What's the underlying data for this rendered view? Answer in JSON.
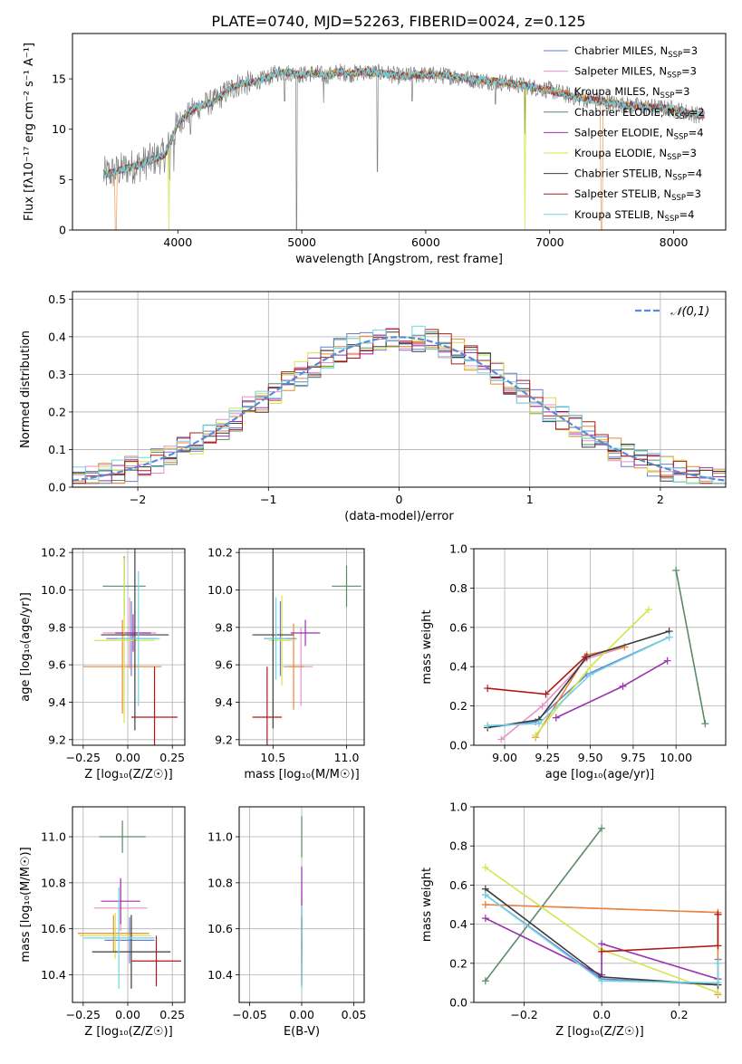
{
  "title": "PLATE=0740, MJD=52263, FIBERID=0024, z=0.125",
  "colors": [
    "#6a7fd0",
    "#e890c8",
    "#e8873a",
    "#5a8a68",
    "#9b30b0",
    "#d4e44e",
    "#3c3c3c",
    "#b01818",
    "#72d4e2"
  ],
  "models": [
    {
      "prefix": "Chabrier MILES, N",
      "sub": "SSP",
      "suffix": "=3"
    },
    {
      "prefix": "Salpeter MILES, N",
      "sub": "SSP",
      "suffix": "=3"
    },
    {
      "prefix": "Kroupa MILES, N",
      "sub": "SSP",
      "suffix": "=3"
    },
    {
      "prefix": "Chabrier ELODIE, N",
      "sub": "SSP",
      "suffix": "=2"
    },
    {
      "prefix": "Salpeter ELODIE, N",
      "sub": "SSP",
      "suffix": "=4"
    },
    {
      "prefix": "Kroupa ELODIE, N",
      "sub": "SSP",
      "suffix": "=3"
    },
    {
      "prefix": "Chabrier STELIB, N",
      "sub": "SSP",
      "suffix": "=4"
    },
    {
      "prefix": "Salpeter STELIB, N",
      "sub": "SSP",
      "suffix": "=3"
    },
    {
      "prefix": "Kroupa STELIB, N",
      "sub": "SSP",
      "suffix": "=4"
    }
  ],
  "chart_data": [
    {
      "id": "spectrum",
      "type": "line",
      "xlabel": "wavelength [Angstrom, rest frame]",
      "ylabel": "Flux [fλ10⁻¹⁷ erg cm⁻² s⁻¹ A⁻¹]",
      "xlim": [
        3150,
        8420
      ],
      "ylim": [
        0,
        19.5
      ],
      "xticks": [
        4000,
        5000,
        6000,
        7000,
        8000
      ],
      "yticks": [
        0,
        5,
        10,
        15
      ],
      "grid": false,
      "legend": "top-right",
      "continuum": {
        "x": [
          3400,
          3500,
          3600,
          3700,
          3800,
          3900,
          4000,
          4100,
          4200,
          4300,
          4400,
          4500,
          4600,
          4700,
          4800,
          4900,
          5000,
          5100,
          5200,
          5300,
          5400,
          5500,
          5600,
          5700,
          5800,
          5900,
          6000,
          6200,
          6400,
          6600,
          6800,
          7000,
          7200,
          7400,
          7600,
          7800,
          8000,
          8200
        ],
        "y": [
          5.5,
          5.8,
          6.2,
          6.5,
          7.0,
          7.5,
          10.5,
          11.8,
          12.4,
          12.8,
          13.8,
          14.5,
          14.6,
          15.0,
          15.6,
          15.6,
          15.4,
          15.6,
          15.3,
          15.7,
          15.5,
          15.7,
          15.6,
          15.5,
          15.2,
          15.4,
          15.4,
          15.3,
          14.9,
          14.7,
          14.3,
          13.9,
          13.2,
          12.8,
          12.4,
          12.2,
          12.0,
          11.4
        ]
      },
      "absorption_lines": [
        {
          "x": 3934,
          "y": 5.0
        },
        {
          "x": 3968,
          "y": 5.8
        },
        {
          "x": 4102,
          "y": 9.5
        },
        {
          "x": 4861,
          "y": 12.8
        },
        {
          "x": 4959,
          "y": 0.0
        },
        {
          "x": 5176,
          "y": 12.6
        },
        {
          "x": 5891,
          "y": 12.8
        },
        {
          "x": 5611,
          "y": 5.8
        },
        {
          "x": 6563,
          "y": 12.5
        },
        {
          "x": 6800,
          "y": 9.5
        }
      ],
      "model_drops": [
        {
          "x": 3500,
          "model": 2
        },
        {
          "x": 3930,
          "model": 5
        },
        {
          "x": 6800,
          "model": 5
        },
        {
          "x": 7420,
          "model": 2
        }
      ]
    },
    {
      "id": "residuals",
      "type": "histogram",
      "xlabel": "(data-model)/error",
      "ylabel": "Normed distribution",
      "xlim": [
        -2.5,
        2.5
      ],
      "ylim": [
        0,
        0.52
      ],
      "xticks": [
        -2,
        -1,
        0,
        1,
        2
      ],
      "yticks": [
        0.0,
        0.1,
        0.2,
        0.3,
        0.4,
        0.5
      ],
      "grid": true,
      "legend": "top-right",
      "reference": {
        "label": "𝒩(0,1)",
        "mu": 0,
        "sigma": 1
      }
    },
    {
      "id": "age_vs_Z",
      "type": "errorbar",
      "xlabel": "Z [log₁₀(Z/Z☉)]",
      "ylabel": "age  [log₁₀(age/yr)]",
      "xlim": [
        -0.31,
        0.32
      ],
      "ylim": [
        9.17,
        10.22
      ],
      "xticks": [
        -0.25,
        0.0,
        0.25
      ],
      "yticks": [
        9.2,
        9.4,
        9.6,
        9.8,
        10.0,
        10.2
      ],
      "grid": true,
      "points": [
        {
          "model": 0,
          "x": 0.02,
          "y": 9.74,
          "xerr": 0.14,
          "yerr": 0.2
        },
        {
          "model": 1,
          "x": 0.01,
          "y": 9.77,
          "xerr": 0.15,
          "yerr": 0.19
        },
        {
          "model": 2,
          "x": -0.03,
          "y": 9.59,
          "xerr": 0.22,
          "yerr": 0.25
        },
        {
          "model": 3,
          "x": -0.02,
          "y": 10.02,
          "xerr": 0.12,
          "yerr": 0.16
        },
        {
          "model": 4,
          "x": 0.03,
          "y": 9.77,
          "xerr": 0.1,
          "yerr": 0.1
        },
        {
          "model": 5,
          "x": -0.02,
          "y": 9.73,
          "xerr": 0.17,
          "yerr": 0.44
        },
        {
          "model": 6,
          "x": 0.04,
          "y": 9.76,
          "xerr": 0.19,
          "yerr": 0.51
        },
        {
          "model": 7,
          "x": 0.15,
          "y": 9.32,
          "xerr": 0.13,
          "yerr": 0.27
        },
        {
          "model": 8,
          "x": 0.06,
          "y": 9.74,
          "xerr": 0.12,
          "yerr": 0.36
        }
      ]
    },
    {
      "id": "age_vs_mass",
      "type": "errorbar",
      "xlabel": "mass [log₁₀(M/M☉)]",
      "ylabel": "",
      "xlim": [
        10.27,
        11.12
      ],
      "ylim": [
        9.17,
        10.22
      ],
      "xticks": [
        10.5,
        11.0
      ],
      "yticks": [
        9.2,
        9.4,
        9.6,
        9.8,
        10.0,
        10.2
      ],
      "grid": true,
      "points": [
        {
          "model": 0,
          "x": 10.55,
          "y": 9.74,
          "xerr": 0.11,
          "yerr": 0.2
        },
        {
          "model": 1,
          "x": 10.69,
          "y": 9.59,
          "xerr": 0.08,
          "yerr": 0.21
        },
        {
          "model": 2,
          "x": 10.64,
          "y": 9.59,
          "xerr": 0.07,
          "yerr": 0.23
        },
        {
          "model": 3,
          "x": 11.0,
          "y": 10.02,
          "xerr": 0.1,
          "yerr": 0.11
        },
        {
          "model": 4,
          "x": 10.72,
          "y": 9.77,
          "xerr": 0.1,
          "yerr": 0.07
        },
        {
          "model": 5,
          "x": 10.56,
          "y": 9.73,
          "xerr": 0.09,
          "yerr": 0.24
        },
        {
          "model": 6,
          "x": 10.5,
          "y": 9.76,
          "xerr": 0.14,
          "yerr": 0.5
        },
        {
          "model": 7,
          "x": 10.46,
          "y": 9.32,
          "xerr": 0.1,
          "yerr": 0.27
        },
        {
          "model": 8,
          "x": 10.52,
          "y": 9.74,
          "xerr": 0.07,
          "yerr": 0.22
        }
      ]
    },
    {
      "id": "weight_vs_age",
      "type": "line",
      "xlabel": "age  [log₁₀(age/yr)]",
      "ylabel": "mass weight",
      "xlim": [
        8.82,
        10.29
      ],
      "ylim": [
        0,
        1.0
      ],
      "xticks": [
        9.0,
        9.25,
        9.5,
        9.75,
        10.0
      ],
      "yticks": [
        0.0,
        0.2,
        0.4,
        0.6,
        0.8,
        1.0
      ],
      "grid": true,
      "series": [
        {
          "model": 0,
          "x": [
            8.9,
            9.18,
            9.48,
            9.96
          ],
          "y": [
            0.09,
            0.12,
            0.36,
            0.55
          ]
        },
        {
          "model": 1,
          "x": [
            8.98,
            9.22,
            9.48,
            9.7
          ],
          "y": [
            0.03,
            0.2,
            0.44,
            0.5
          ]
        },
        {
          "model": 2,
          "x": [
            9.18,
            9.48,
            9.7
          ],
          "y": [
            0.04,
            0.46,
            0.5
          ]
        },
        {
          "model": 3,
          "x": [
            10.0,
            10.17
          ],
          "y": [
            0.89,
            0.11
          ]
        },
        {
          "model": 4,
          "x": [
            9.3,
            9.69,
            9.95
          ],
          "y": [
            0.14,
            0.3,
            0.43
          ]
        },
        {
          "model": 5,
          "x": [
            9.18,
            9.5,
            9.84
          ],
          "y": [
            0.05,
            0.4,
            0.69
          ]
        },
        {
          "model": 6,
          "x": [
            8.9,
            9.2,
            9.48,
            9.96
          ],
          "y": [
            0.09,
            0.13,
            0.45,
            0.58
          ]
        },
        {
          "model": 7,
          "x": [
            8.9,
            9.24,
            9.47
          ],
          "y": [
            0.29,
            0.26,
            0.45
          ]
        },
        {
          "model": 8,
          "x": [
            8.9,
            9.2,
            9.5,
            9.96
          ],
          "y": [
            0.1,
            0.11,
            0.36,
            0.55
          ]
        }
      ]
    },
    {
      "id": "mass_vs_Z",
      "type": "errorbar",
      "xlabel": "Z [log₁₀(Z/Z☉)]",
      "ylabel": "mass [log₁₀(M/M☉)]",
      "xlim": [
        -0.31,
        0.32
      ],
      "ylim": [
        10.28,
        11.13
      ],
      "xticks": [
        -0.25,
        0.0,
        0.25
      ],
      "yticks": [
        10.4,
        10.6,
        10.8,
        11.0
      ],
      "grid": true,
      "points": [
        {
          "model": 0,
          "x": 0.01,
          "y": 10.55,
          "xerr": 0.14,
          "yerr": 0.1
        },
        {
          "model": 1,
          "x": -0.04,
          "y": 10.69,
          "xerr": 0.15,
          "yerr": 0.1
        },
        {
          "model": 2,
          "x": -0.08,
          "y": 10.58,
          "xerr": 0.2,
          "yerr": 0.08
        },
        {
          "model": 3,
          "x": -0.03,
          "y": 11.0,
          "xerr": 0.13,
          "yerr": 0.07
        },
        {
          "model": 4,
          "x": -0.04,
          "y": 10.72,
          "xerr": 0.11,
          "yerr": 0.1
        },
        {
          "model": 5,
          "x": -0.07,
          "y": 10.57,
          "xerr": 0.2,
          "yerr": 0.1
        },
        {
          "model": 6,
          "x": 0.02,
          "y": 10.5,
          "xerr": 0.22,
          "yerr": 0.16
        },
        {
          "model": 7,
          "x": 0.16,
          "y": 10.46,
          "xerr": 0.14,
          "yerr": 0.11
        },
        {
          "model": 8,
          "x": -0.05,
          "y": 10.56,
          "xerr": 0.2,
          "yerr": 0.22
        }
      ]
    },
    {
      "id": "mass_vs_ebv",
      "type": "errorbar",
      "xlabel": "E(B-V)",
      "ylabel": "",
      "xlim": [
        -0.06,
        0.06
      ],
      "ylim": [
        10.28,
        11.13
      ],
      "xticks": [
        -0.05,
        0.0,
        0.05
      ],
      "yticks": [
        10.4,
        10.6,
        10.8,
        11.0
      ],
      "grid": true,
      "points": [
        {
          "model": 0,
          "x": 0.0,
          "y": 10.55,
          "xerr": 0,
          "yerr": 0.1
        },
        {
          "model": 1,
          "x": 0.0,
          "y": 10.69,
          "xerr": 0,
          "yerr": 0.1
        },
        {
          "model": 2,
          "x": 0.0,
          "y": 10.58,
          "xerr": 0,
          "yerr": 0.08
        },
        {
          "model": 3,
          "x": 0.0,
          "y": 11.0,
          "xerr": 0,
          "yerr": 0.09
        },
        {
          "model": 4,
          "x": 0.0,
          "y": 10.72,
          "xerr": 0,
          "yerr": 0.15
        },
        {
          "model": 5,
          "x": 0.0,
          "y": 10.57,
          "xerr": 0,
          "yerr": 0.1
        },
        {
          "model": 6,
          "x": 0.0,
          "y": 10.5,
          "xerr": 0,
          "yerr": 0.15
        },
        {
          "model": 7,
          "x": 0.0,
          "y": 10.46,
          "xerr": 0,
          "yerr": 0.1
        },
        {
          "model": 8,
          "x": 0.0,
          "y": 10.52,
          "xerr": 0,
          "yerr": 0.18
        }
      ]
    },
    {
      "id": "weight_vs_Z",
      "type": "line",
      "xlabel": "Z [log₁₀(Z/Z☉)]",
      "ylabel": "mass weight",
      "xlim": [
        -0.33,
        0.32
      ],
      "ylim": [
        0,
        1.0
      ],
      "xticks": [
        -0.2,
        0.0,
        0.2
      ],
      "yticks": [
        0.0,
        0.2,
        0.4,
        0.6,
        0.8,
        1.0
      ],
      "grid": true,
      "series": [
        {
          "model": 0,
          "x": [
            -0.3,
            0.0,
            0.3,
            0.3
          ],
          "y": [
            0.55,
            0.12,
            0.09,
            0.22
          ]
        },
        {
          "model": 1,
          "x": [
            -0.3,
            0.3
          ],
          "y": [
            0.5,
            0.46
          ]
        },
        {
          "model": 2,
          "x": [
            -0.3,
            0.3,
            0.3
          ],
          "y": [
            0.5,
            0.46,
            0.04
          ]
        },
        {
          "model": 3,
          "x": [
            -0.3,
            0.0
          ],
          "y": [
            0.11,
            0.89
          ]
        },
        {
          "model": 4,
          "x": [
            -0.3,
            0.0,
            0.0,
            0.3
          ],
          "y": [
            0.43,
            0.14,
            0.3,
            0.12
          ]
        },
        {
          "model": 5,
          "x": [
            -0.3,
            0.0,
            0.3
          ],
          "y": [
            0.69,
            0.27,
            0.05
          ]
        },
        {
          "model": 6,
          "x": [
            -0.3,
            0.0,
            0.3
          ],
          "y": [
            0.58,
            0.13,
            0.09
          ]
        },
        {
          "model": 7,
          "x": [
            0.0,
            0.3,
            0.3,
            0.3
          ],
          "y": [
            0.26,
            0.29,
            0.45,
            0.45
          ]
        },
        {
          "model": 8,
          "x": [
            -0.3,
            0.0,
            0.3,
            0.3
          ],
          "y": [
            0.55,
            0.11,
            0.1,
            0.2
          ]
        }
      ]
    }
  ]
}
